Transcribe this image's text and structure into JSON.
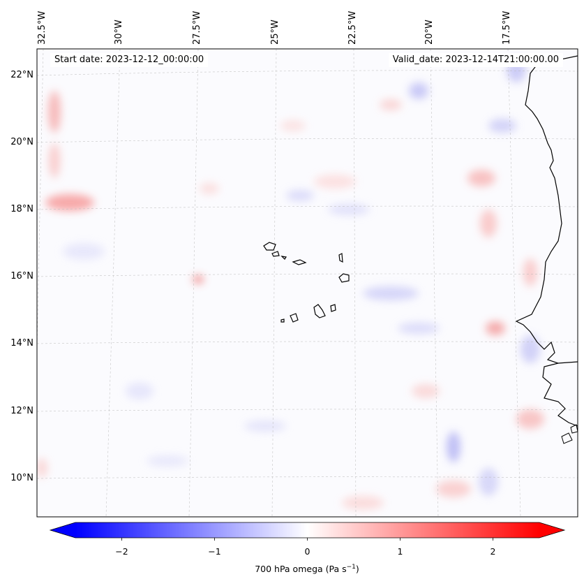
{
  "map": {
    "start_date": "Start date: 2023-12-12_00:00:00",
    "valid_date": "Valid_date: 2023-12-14T21:00:00.00",
    "longitude_labels": [
      "32.5°W",
      "30°W",
      "27.5°W",
      "25°W",
      "22.5°W",
      "20°W",
      "17.5°W"
    ],
    "latitude_labels": [
      "22°N",
      "20°N",
      "18°N",
      "16°N",
      "14°N",
      "12°N",
      "10°N"
    ],
    "field": "700 hPa omega",
    "gridlines": true,
    "coastlines": true
  },
  "colorbar": {
    "label_prefix": "700 hPa omega (Pa s",
    "label_exp": "−1",
    "label_suffix": ")",
    "ticks": [
      "−2",
      "−1",
      "0",
      "1",
      "2"
    ],
    "tick_values": [
      -2,
      -1,
      0,
      1,
      2
    ],
    "range": [
      -2.5,
      2.5
    ],
    "extend": "both",
    "colormap": "bwr",
    "color_low": "#0000ff",
    "color_mid": "#ffffff",
    "color_high": "#ff0000"
  }
}
